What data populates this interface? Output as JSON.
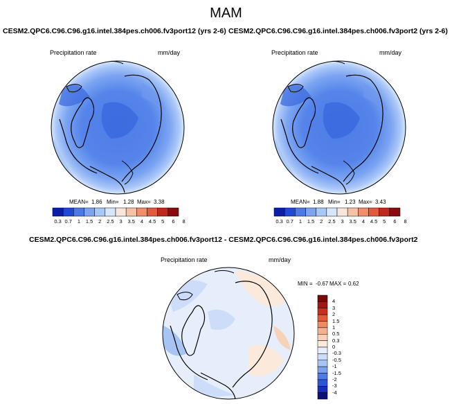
{
  "figure": {
    "season": "MAM"
  },
  "colors": {
    "abs_scale": [
      "#0a1fa6",
      "#1e48d6",
      "#4a7ae8",
      "#7ca4f2",
      "#a9c6f8",
      "#d6e6fb",
      "#f7e6d9",
      "#f6c2a6",
      "#f08e6a",
      "#e05a3b",
      "#c0281c",
      "#8c0a0a"
    ],
    "diff_scale": [
      "#0a127a",
      "#1a2fb8",
      "#2d55d8",
      "#4f7be6",
      "#7ca2ef",
      "#a8c4f5",
      "#cdddf9",
      "#e7eefb",
      "#fbe9db",
      "#f8d2b8",
      "#f5b08e",
      "#f08a62",
      "#e45c36",
      "#c8301c",
      "#a01810",
      "#780808"
    ]
  },
  "panels": [
    {
      "title": "CESM2.QPC6.C96.C96.g16.intel.384pes.ch006.fv3port12 (yrs 2-6)",
      "variable": "Precipitation rate",
      "units": "mm/day",
      "mean_label": "MEAN=",
      "mean": "1.86",
      "min_label": "Min=",
      "min": "1.28",
      "max_label": "Max=",
      "max": "3.38",
      "ticks": [
        "0.3",
        "0.7",
        "1",
        "1.5",
        "2",
        "2.5",
        "3",
        "3.5",
        "4",
        "4.5",
        "5",
        "6",
        "8"
      ]
    },
    {
      "title": "CESM2.QPC6.C96.C96.g16.intel.384pes.ch006.fv3port2 (yrs 2-6)",
      "variable": "Precipitation rate",
      "units": "mm/day",
      "mean_label": "MEAN=",
      "mean": "1.88",
      "min_label": "Min=",
      "min": "1.23",
      "max_label": "Max=",
      "max": "3.43",
      "ticks": [
        "0.3",
        "0.7",
        "1",
        "1.5",
        "2",
        "2.5",
        "3",
        "3.5",
        "4",
        "4.5",
        "5",
        "6",
        "8"
      ]
    }
  ],
  "diff": {
    "title": "CESM2.QPC6.C96.C96.g16.intel.384pes.ch006.fv3port12 - CESM2.QPC6.C96.C96.g16.intel.384pes.ch006.fv3port2",
    "variable": "Precipitation rate",
    "units": "mm/day",
    "min_label": "MIN =",
    "min": "-0.67",
    "max_label": "MAX =",
    "max": "0.62",
    "ticks": [
      "4",
      "3",
      "2",
      "1.5",
      "1",
      "0.5",
      "0.3",
      "0",
      "-0.3",
      "-0.5",
      "-1",
      "-1.5",
      "-2",
      "-3",
      "-4"
    ]
  }
}
